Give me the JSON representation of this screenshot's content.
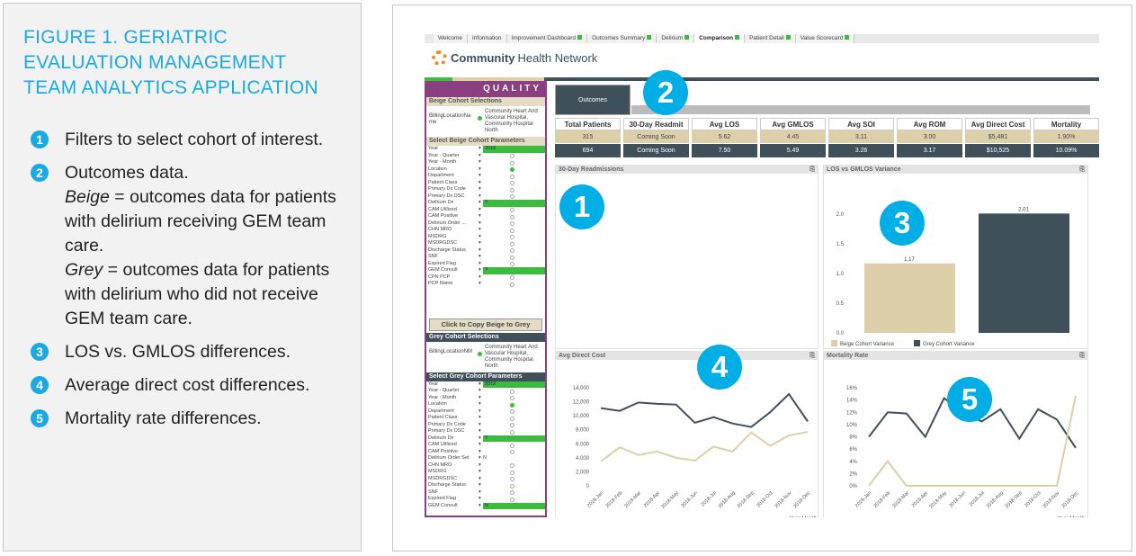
{
  "legend": {
    "title": "FIGURE 1. GERIATRIC EVALUATION MANAGEMENT TEAM ANALYTICS APPLICATION",
    "items": [
      {
        "num": "1",
        "text": "Filters to select cohort of interest."
      },
      {
        "num": "2",
        "text": "Outcomes data."
      },
      {
        "num": "3",
        "text": "LOS vs. GMLOS differences."
      },
      {
        "num": "4",
        "text": "Average direct cost differences."
      },
      {
        "num": "5",
        "text": "Mortality rate differences."
      }
    ],
    "beige_word": "Beige",
    "beige_text": " = outcomes data for patients with delirium receiving GEM team care.",
    "grey_word": "Grey",
    "grey_text": " = outcomes data for patients with delirium who did not receive GEM team care."
  },
  "app": {
    "tabs": [
      {
        "label": "Welcome",
        "dot": false
      },
      {
        "label": "Information",
        "dot": false
      },
      {
        "label": "Improvement Dashboard",
        "dot": true
      },
      {
        "label": "Outcomes Summary",
        "dot": true
      },
      {
        "label": "Delirium",
        "dot": true
      },
      {
        "label": "Comparison",
        "dot": true,
        "active": true
      },
      {
        "label": "Patient Detail",
        "dot": true
      },
      {
        "label": "Value Scorecard",
        "dot": true
      }
    ],
    "logo_bold": "Community",
    "logo_rest": "Health Network",
    "quality": "QUALITY",
    "beige_selections": "Beige Cohort Selections",
    "beige_sel_key": "BillingLocationName",
    "sel_value": "Community Heart And Vascular Hospital, Community Hospital North",
    "beige_params": "Select Beige Cohort Parameters",
    "copy_button": "Click to Copy Beige to Grey",
    "grey_selections": "Grey Cohort Selections",
    "grey_sel_key": "BillingLocationNM",
    "grey_params": "Select Grey Cohort Parameters",
    "beige_param_rows": [
      [
        "Year",
        "2018",
        "on"
      ],
      [
        "Year - Quarter",
        "",
        "cb"
      ],
      [
        "Year - Month",
        "",
        "cb"
      ],
      [
        "Location",
        "",
        "g"
      ],
      [
        "Department",
        "",
        "cb"
      ],
      [
        "Patient Class",
        "",
        "cb"
      ],
      [
        "Primary Dx Code",
        "",
        "cb"
      ],
      [
        "Primary Dx DSC",
        "",
        "cb"
      ],
      [
        "Delirium Dx",
        "Y",
        "on"
      ],
      [
        "CAM Utilized",
        "",
        "cb"
      ],
      [
        "CAM Positive",
        "",
        "cb"
      ],
      [
        "Delirium Order ...",
        "",
        "cb"
      ],
      [
        "CHN MRO",
        "",
        "cb"
      ],
      [
        "MSDRG",
        "",
        "cb"
      ],
      [
        "MSDRGDSC",
        "",
        "cb"
      ],
      [
        "Discharge Status",
        "",
        "cb"
      ],
      [
        "SNF",
        "",
        "cb"
      ],
      [
        "Expired Flag",
        "",
        "cb"
      ],
      [
        "GEM Consult",
        "Y",
        "on"
      ],
      [
        "CPN PCP",
        "",
        "cb"
      ],
      [
        "PCP Name",
        "",
        "cb"
      ]
    ],
    "grey_param_rows": [
      [
        "Year",
        "2018",
        "on"
      ],
      [
        "Year - Quarter",
        "",
        "cb"
      ],
      [
        "Year - Month",
        "",
        "cb"
      ],
      [
        "Location",
        "",
        "g"
      ],
      [
        "Department",
        "",
        "cb"
      ],
      [
        "Patient Class",
        "",
        "cb"
      ],
      [
        "Primary Dx Code",
        "",
        "cb"
      ],
      [
        "Primary Dx DSC",
        "",
        "cb"
      ],
      [
        "Delirium Dx",
        "Y",
        "on"
      ],
      [
        "CAM Utilized",
        "",
        "cb"
      ],
      [
        "CAM Positive",
        "",
        "cb"
      ],
      [
        "Delirium Order Set",
        "N",
        "txt"
      ],
      [
        "CHN MRO",
        "",
        "cb"
      ],
      [
        "MSDRG",
        "",
        "cb"
      ],
      [
        "MSDRGDSC",
        "",
        "cb"
      ],
      [
        "Discharge Status",
        "",
        "cb"
      ],
      [
        "SNF",
        "",
        "cb"
      ],
      [
        "Expired Flag",
        "",
        "cb"
      ],
      [
        "GEM Consult",
        "N",
        "on"
      ]
    ],
    "outcomes_tab": "Outcomes",
    "metrics": [
      {
        "h": "Total Patients",
        "beige": "315",
        "grey": "694"
      },
      {
        "h": "30-Day Readmit",
        "beige": "Coming Soon",
        "grey": "Coming Soon"
      },
      {
        "h": "Avg LOS",
        "beige": "5.62",
        "grey": "7.50"
      },
      {
        "h": "Avg GMLOS",
        "beige": "4.45",
        "grey": "5.49"
      },
      {
        "h": "Avg SOI",
        "beige": "3.11",
        "grey": "3.26"
      },
      {
        "h": "Avg ROM",
        "beige": "3.00",
        "grey": "3.17"
      },
      {
        "h": "Avg Direct Cost",
        "beige": "$5,481",
        "grey": "$10,525"
      },
      {
        "h": "Mortality",
        "beige": "1.90%",
        "grey": "10.09%"
      }
    ],
    "readmissions_title": "30-Day Readmissions",
    "badges": [
      "1",
      "2",
      "3",
      "4",
      "5"
    ]
  },
  "colors": {
    "beige": "#ddcfa9",
    "grey": "#3f505b",
    "accent": "#00aee6",
    "purple": "#8a3f7e",
    "green": "#3cbc3c"
  },
  "chart_data": [
    {
      "type": "bar",
      "title": "LOS vs GMLOS Variance",
      "categories": [
        "Beige Cohort Variance",
        "Grey Cohort Variance"
      ],
      "values": [
        1.17,
        2.01
      ],
      "labels": [
        "1.17",
        "2.01"
      ],
      "ylim": [
        0,
        2.0
      ],
      "yticks": [
        "0.0",
        "0.5",
        "1.0",
        "1.5",
        "2.0"
      ],
      "legend": "bottom"
    },
    {
      "type": "line",
      "title": "Avg Direct Cost",
      "xlabel": "Year-Month",
      "categories": [
        "2018-Jan",
        "2018-Feb",
        "2018-Mar",
        "2018-Apr",
        "2018-May",
        "2018-Jun",
        "2018-Jul",
        "2018-Aug",
        "2018-Sep",
        "2018-Oct",
        "2018-Nov",
        "2018-Dec"
      ],
      "ylim": [
        0,
        14000
      ],
      "yticks": [
        "0",
        "2,000",
        "4,000",
        "6,000",
        "8,000",
        "10,000",
        "12,000",
        "14,000"
      ],
      "series": [
        {
          "name": "Grey",
          "values": [
            11100,
            10700,
            11900,
            11700,
            11600,
            9000,
            9800,
            8900,
            8400,
            10500,
            13100,
            9200
          ]
        },
        {
          "name": "Beige",
          "values": [
            3500,
            5500,
            4400,
            4900,
            4000,
            3600,
            5600,
            4900,
            7600,
            5700,
            7200,
            7700
          ]
        }
      ]
    },
    {
      "type": "line",
      "title": "Mortality Rate",
      "xlabel": "Year-Month",
      "categories": [
        "2018-Jan",
        "2018-Feb",
        "2018-Mar",
        "2018-Apr",
        "2018-May",
        "2018-Jun",
        "2018-Jul",
        "2018-Aug",
        "2018-Sep",
        "2018-Oct",
        "2018-Nov",
        "2018-Dec"
      ],
      "ylim": [
        0,
        16
      ],
      "yticks": [
        "0%",
        "2%",
        "4%",
        "6%",
        "8%",
        "10%",
        "12%",
        "14%",
        "16%"
      ],
      "series": [
        {
          "name": "Grey",
          "values": [
            8,
            12,
            11.8,
            8,
            14.3,
            12,
            10.5,
            12.5,
            7.7,
            12.5,
            10.8,
            6.2
          ]
        },
        {
          "name": "Beige",
          "values": [
            0,
            4,
            0,
            0,
            0,
            0,
            0,
            0,
            0,
            0,
            0,
            14.7
          ]
        }
      ]
    }
  ]
}
